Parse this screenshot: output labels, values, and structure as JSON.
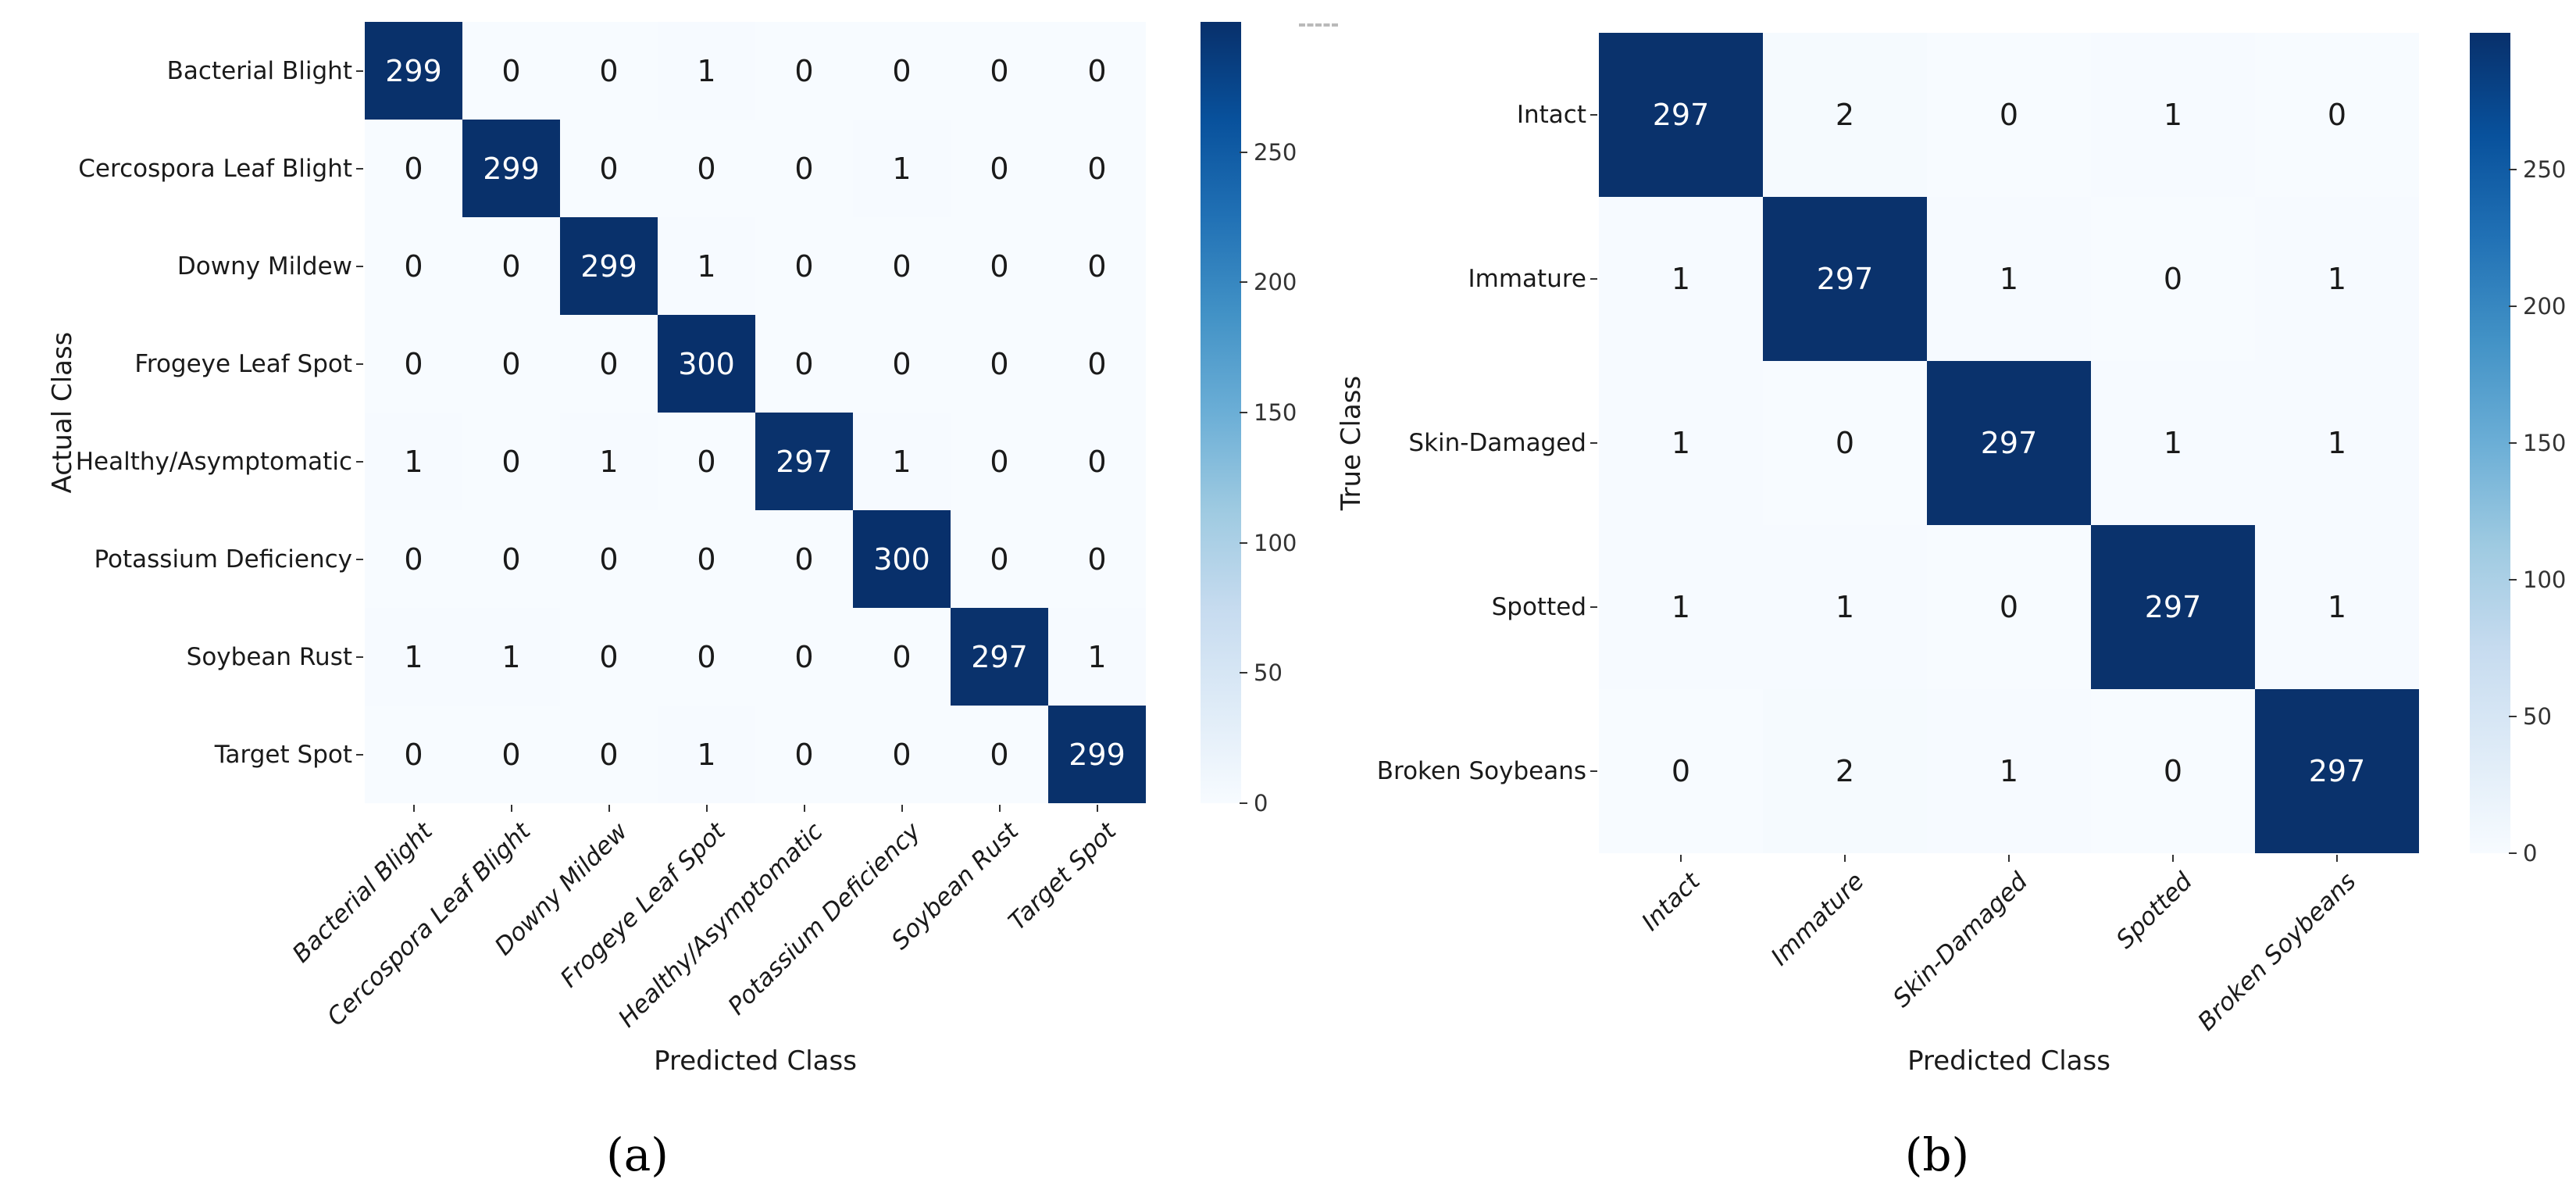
{
  "colors": {
    "cmap_low": "#f7fbff",
    "cmap_high": "#08306b",
    "cell_text_dark": "#1a1a1a",
    "cell_text_light": "#ffffff",
    "tick_color": "#333333"
  },
  "chart_data": [
    {
      "type": "heatmap",
      "caption": "(a)",
      "xlabel": "Predicted Class",
      "ylabel": "Actual Class",
      "colormap": "Blues",
      "legend_position": "right-colorbar",
      "grid": false,
      "categories": [
        "Bacterial Blight",
        "Cercospora Leaf Blight",
        "Downy Mildew",
        "Frogeye Leaf Spot",
        "Healthy/Asymptomatic",
        "Potassium Deficiency",
        "Soybean Rust",
        "Target Spot"
      ],
      "matrix": [
        [
          299,
          0,
          0,
          1,
          0,
          0,
          0,
          0
        ],
        [
          0,
          299,
          0,
          0,
          0,
          1,
          0,
          0
        ],
        [
          0,
          0,
          299,
          1,
          0,
          0,
          0,
          0
        ],
        [
          0,
          0,
          0,
          300,
          0,
          0,
          0,
          0
        ],
        [
          1,
          0,
          1,
          0,
          297,
          1,
          0,
          0
        ],
        [
          0,
          0,
          0,
          0,
          0,
          300,
          0,
          0
        ],
        [
          1,
          1,
          0,
          0,
          0,
          0,
          297,
          1
        ],
        [
          0,
          0,
          0,
          1,
          0,
          0,
          0,
          299
        ]
      ],
      "vmin": 0,
      "vmax": 300,
      "colorbar_ticks": [
        0,
        50,
        100,
        150,
        200,
        250
      ]
    },
    {
      "type": "heatmap",
      "caption": "(b)",
      "xlabel": "Predicted Class",
      "ylabel": "True Class",
      "colormap": "Blues",
      "legend_position": "right-colorbar",
      "grid": false,
      "categories": [
        "Intact",
        "Immature",
        "Skin-Damaged",
        "Spotted",
        "Broken Soybeans"
      ],
      "matrix": [
        [
          297,
          2,
          0,
          1,
          0
        ],
        [
          1,
          297,
          1,
          0,
          1
        ],
        [
          1,
          0,
          297,
          1,
          1
        ],
        [
          1,
          1,
          0,
          297,
          1
        ],
        [
          0,
          2,
          1,
          0,
          297
        ]
      ],
      "vmin": 0,
      "vmax": 300,
      "colorbar_ticks": [
        0,
        50,
        100,
        150,
        200,
        250
      ]
    }
  ]
}
